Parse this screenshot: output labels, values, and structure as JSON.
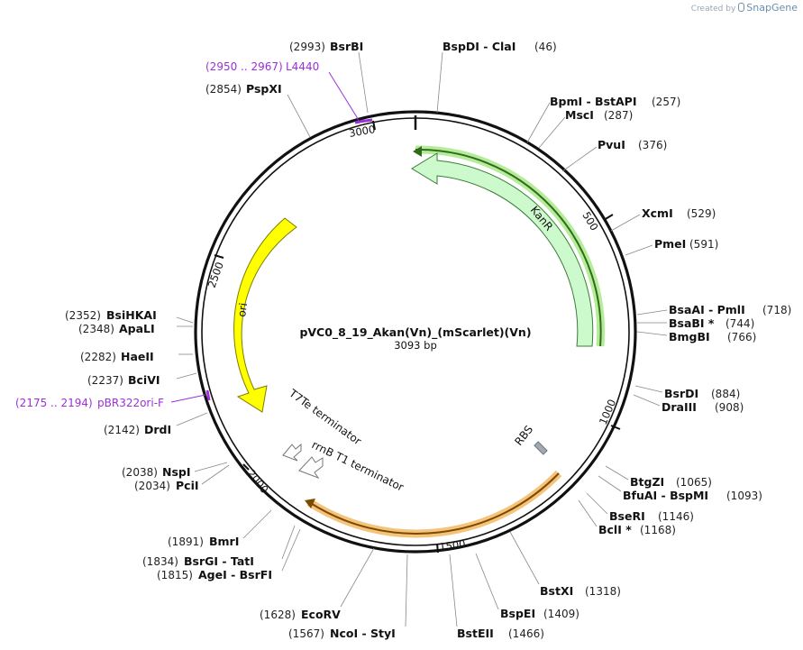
{
  "brand": {
    "created_by": "Created by",
    "name": "SnapGene"
  },
  "plasmid": {
    "name": "pVC0_8_19_Akan(Vn)_(mScarlet)(Vn)",
    "size_label": "3093 bp",
    "length": 3093
  },
  "ticks": [
    "500",
    "1000",
    "1500",
    "2000",
    "2500",
    "3000"
  ],
  "sites": [
    {
      "pos": "(2993)",
      "name": "BsrBI"
    },
    {
      "name": "BspDI  - ClaI",
      "pos": "(46)"
    },
    {
      "name": "BpmI  - BstAPI",
      "pos": "(257)"
    },
    {
      "name": "MscI",
      "pos": "(287)"
    },
    {
      "name": "PvuI",
      "pos": "(376)"
    },
    {
      "name": "XcmI",
      "pos": "(529)"
    },
    {
      "name": "PmeI",
      "pos": "(591)"
    },
    {
      "name": "BsaAI  - PmlI",
      "pos": "(718)"
    },
    {
      "name": "BsaBI *",
      "pos": "(744)"
    },
    {
      "name": "BmgBI",
      "pos": "(766)"
    },
    {
      "name": "BsrDI",
      "pos": "(884)"
    },
    {
      "name": "DraIII",
      "pos": "(908)"
    },
    {
      "name": "BtgZI",
      "pos": "(1065)"
    },
    {
      "name": "BfuAI  - BspMI",
      "pos": "(1093)"
    },
    {
      "name": "BseRI",
      "pos": "(1146)"
    },
    {
      "name": "BclI *",
      "pos": "(1168)"
    },
    {
      "name": "BstXI",
      "pos": "(1318)"
    },
    {
      "name": "BspEI",
      "pos": "(1409)"
    },
    {
      "name": "BstEII",
      "pos": "(1466)"
    },
    {
      "pos": "(1567)",
      "name": "NcoI  - StyI"
    },
    {
      "pos": "(1628)",
      "name": "EcoRV"
    },
    {
      "pos": "(1815)",
      "name": "AgeI  - BsrFI"
    },
    {
      "pos": "(1834)",
      "name": "BsrGI  - TatI"
    },
    {
      "pos": "(1891)",
      "name": "BmrI"
    },
    {
      "pos": "(2034)",
      "name": "PciI"
    },
    {
      "pos": "(2038)",
      "name": "NspI"
    },
    {
      "pos": "(2142)",
      "name": "DrdI"
    },
    {
      "pos": "(2237)",
      "name": "BciVI"
    },
    {
      "pos": "(2282)",
      "name": "HaeII"
    },
    {
      "pos": "(2348)",
      "name": "ApaLI"
    },
    {
      "pos": "(2352)",
      "name": "BsiHKAI"
    },
    {
      "pos": "(2854)",
      "name": "PspXI"
    }
  ],
  "primers": [
    {
      "range": "(2950 .. 2967)",
      "name": "L4440"
    },
    {
      "range": "(2175 .. 2194)",
      "name": "pBR322ori-F"
    }
  ],
  "features": [
    {
      "name": "KanR",
      "color": "#c8f5c8",
      "stroke": "#2e8b2e"
    },
    {
      "name": "ori",
      "color": "#ffff00",
      "stroke": "#8a8a00"
    },
    {
      "name": "RBS",
      "color": "#a0a8b0"
    },
    {
      "name": "T7Te terminator"
    },
    {
      "name": "rrnB T1 terminator"
    }
  ],
  "colors": {
    "primer": "#9b30d9",
    "kanr_highlight": "#7fd27f",
    "cds_highlight": "#f5c37a",
    "ring": "#111111"
  }
}
